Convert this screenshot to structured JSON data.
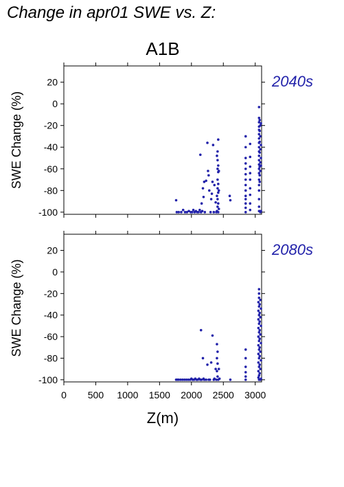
{
  "page_title": "Change in apr01 SWE vs. Z:",
  "scenario": "A1B",
  "chart_data": [
    {
      "type": "scatter",
      "period_label": "2040s",
      "xlabel": "",
      "ylabel": "SWE Change (%)",
      "xlim": [
        0,
        3100
      ],
      "ylim": [
        -102,
        35
      ],
      "xticks": [
        0,
        500,
        1000,
        1500,
        2000,
        2500,
        3000
      ],
      "yticks": [
        -100,
        -80,
        -60,
        -40,
        -20,
        0,
        20
      ],
      "show_x_tick_labels": false,
      "color": "#2222aa",
      "points": [
        [
          1760,
          -89
        ],
        [
          1770,
          -100
        ],
        [
          1800,
          -100
        ],
        [
          1840,
          -100
        ],
        [
          1870,
          -98
        ],
        [
          1900,
          -100
        ],
        [
          1930,
          -100
        ],
        [
          1960,
          -99
        ],
        [
          1990,
          -100
        ],
        [
          2010,
          -100
        ],
        [
          2030,
          -98
        ],
        [
          2050,
          -100
        ],
        [
          2070,
          -99
        ],
        [
          2090,
          -100
        ],
        [
          2110,
          -100
        ],
        [
          2130,
          -98
        ],
        [
          2150,
          -100
        ],
        [
          2170,
          -99
        ],
        [
          2140,
          -47
        ],
        [
          2160,
          -92
        ],
        [
          2180,
          -78
        ],
        [
          2190,
          -86
        ],
        [
          2200,
          -72
        ],
        [
          2210,
          -100
        ],
        [
          2230,
          -71
        ],
        [
          2250,
          -36
        ],
        [
          2260,
          -62
        ],
        [
          2270,
          -66
        ],
        [
          2280,
          -80
        ],
        [
          2300,
          -100
        ],
        [
          2310,
          -88
        ],
        [
          2320,
          -83
        ],
        [
          2330,
          -72
        ],
        [
          2340,
          -38
        ],
        [
          2350,
          -100
        ],
        [
          2360,
          -75
        ],
        [
          2380,
          -91
        ],
        [
          2390,
          -100
        ],
        [
          2400,
          -48
        ],
        [
          2400,
          -85
        ],
        [
          2400,
          -99
        ],
        [
          2410,
          -44
        ],
        [
          2410,
          -52
        ],
        [
          2410,
          -60
        ],
        [
          2410,
          -70
        ],
        [
          2410,
          -78
        ],
        [
          2410,
          -88
        ],
        [
          2410,
          -95
        ],
        [
          2420,
          -33
        ],
        [
          2420,
          -57
        ],
        [
          2420,
          -63
        ],
        [
          2420,
          -74
        ],
        [
          2420,
          -82
        ],
        [
          2420,
          -92
        ],
        [
          2420,
          -100
        ],
        [
          2430,
          -62
        ],
        [
          2430,
          -80
        ],
        [
          2430,
          -97
        ],
        [
          2600,
          -85
        ],
        [
          2610,
          -89
        ],
        [
          2850,
          -30
        ],
        [
          2850,
          -40
        ],
        [
          2850,
          -50
        ],
        [
          2850,
          -55
        ],
        [
          2850,
          -60
        ],
        [
          2850,
          -65
        ],
        [
          2850,
          -70
        ],
        [
          2850,
          -75
        ],
        [
          2850,
          -80
        ],
        [
          2850,
          -85
        ],
        [
          2850,
          -88
        ],
        [
          2850,
          -92
        ],
        [
          2850,
          -96
        ],
        [
          2850,
          -100
        ],
        [
          2920,
          -37
        ],
        [
          2920,
          -49
        ],
        [
          2920,
          -58
        ],
        [
          2920,
          -64
        ],
        [
          2920,
          -70
        ],
        [
          2920,
          -78
        ],
        [
          2920,
          -84
        ],
        [
          2920,
          -92
        ],
        [
          2920,
          -98
        ],
        [
          3060,
          -3
        ],
        [
          3060,
          -13
        ],
        [
          3060,
          -17
        ],
        [
          3060,
          -21
        ],
        [
          3060,
          -24
        ],
        [
          3060,
          -28
        ],
        [
          3060,
          -32
        ],
        [
          3060,
          -36
        ],
        [
          3060,
          -40
        ],
        [
          3060,
          -44
        ],
        [
          3060,
          -48
        ],
        [
          3060,
          -52
        ],
        [
          3060,
          -56
        ],
        [
          3060,
          -60
        ],
        [
          3060,
          -64
        ],
        [
          3060,
          -70
        ],
        [
          3060,
          -75
        ],
        [
          3060,
          -80
        ],
        [
          3060,
          -88
        ],
        [
          3060,
          -95
        ],
        [
          3060,
          -99
        ],
        [
          3070,
          -15
        ],
        [
          3070,
          -25
        ],
        [
          3070,
          -35
        ],
        [
          3070,
          -45
        ],
        [
          3070,
          -58
        ],
        [
          3070,
          -66
        ],
        [
          3070,
          -72
        ],
        [
          3070,
          -99
        ],
        [
          3080,
          -20
        ],
        [
          3080,
          -30
        ],
        [
          3080,
          -42
        ],
        [
          3080,
          -54
        ],
        [
          3080,
          -62
        ],
        [
          3080,
          -100
        ],
        [
          3090,
          -18
        ],
        [
          3090,
          -38
        ],
        [
          3090,
          -50
        ],
        [
          3090,
          -57
        ],
        [
          3090,
          -99
        ]
      ]
    },
    {
      "type": "scatter",
      "period_label": "2080s",
      "xlabel": "Z(m)",
      "ylabel": "SWE Change (%)",
      "xlim": [
        0,
        3100
      ],
      "ylim": [
        -102,
        35
      ],
      "xticks": [
        0,
        500,
        1000,
        1500,
        2000,
        2500,
        3000
      ],
      "yticks": [
        -100,
        -80,
        -60,
        -40,
        -20,
        0,
        20
      ],
      "show_x_tick_labels": true,
      "color": "#2222aa",
      "points": [
        [
          1760,
          -100
        ],
        [
          1780,
          -100
        ],
        [
          1800,
          -100
        ],
        [
          1830,
          -100
        ],
        [
          1860,
          -100
        ],
        [
          1890,
          -100
        ],
        [
          1920,
          -100
        ],
        [
          1950,
          -100
        ],
        [
          1980,
          -100
        ],
        [
          2000,
          -99
        ],
        [
          2020,
          -100
        ],
        [
          2040,
          -100
        ],
        [
          2060,
          -99
        ],
        [
          2080,
          -100
        ],
        [
          2100,
          -100
        ],
        [
          2120,
          -99
        ],
        [
          2140,
          -100
        ],
        [
          2150,
          -54
        ],
        [
          2160,
          -100
        ],
        [
          2180,
          -80
        ],
        [
          2190,
          -99
        ],
        [
          2200,
          -100
        ],
        [
          2230,
          -100
        ],
        [
          2250,
          -86
        ],
        [
          2270,
          -100
        ],
        [
          2290,
          -100
        ],
        [
          2310,
          -84
        ],
        [
          2330,
          -59
        ],
        [
          2350,
          -100
        ],
        [
          2360,
          -99
        ],
        [
          2380,
          -90
        ],
        [
          2390,
          -100
        ],
        [
          2400,
          -67
        ],
        [
          2400,
          -80
        ],
        [
          2400,
          -92
        ],
        [
          2410,
          -74
        ],
        [
          2410,
          -85
        ],
        [
          2410,
          -97
        ],
        [
          2420,
          -100
        ],
        [
          2430,
          -90
        ],
        [
          2440,
          -99
        ],
        [
          2610,
          -100
        ],
        [
          2850,
          -72
        ],
        [
          2850,
          -80
        ],
        [
          2850,
          -88
        ],
        [
          2850,
          -93
        ],
        [
          2850,
          -97
        ],
        [
          2850,
          -100
        ],
        [
          3050,
          -28
        ],
        [
          3050,
          -36
        ],
        [
          3050,
          -44
        ],
        [
          3050,
          -52
        ],
        [
          3050,
          -60
        ],
        [
          3050,
          -68
        ],
        [
          3050,
          -76
        ],
        [
          3050,
          -84
        ],
        [
          3050,
          -92
        ],
        [
          3050,
          -98
        ],
        [
          3060,
          -16
        ],
        [
          3060,
          -20
        ],
        [
          3060,
          -24
        ],
        [
          3060,
          -32
        ],
        [
          3060,
          -40
        ],
        [
          3060,
          -48
        ],
        [
          3060,
          -56
        ],
        [
          3060,
          -64
        ],
        [
          3060,
          -72
        ],
        [
          3060,
          -80
        ],
        [
          3060,
          -88
        ],
        [
          3060,
          -96
        ],
        [
          3060,
          -100
        ],
        [
          3070,
          -30
        ],
        [
          3070,
          -38
        ],
        [
          3070,
          -46
        ],
        [
          3070,
          -54
        ],
        [
          3070,
          -62
        ],
        [
          3070,
          -70
        ],
        [
          3070,
          -78
        ],
        [
          3070,
          -86
        ],
        [
          3070,
          -94
        ],
        [
          3080,
          -26
        ],
        [
          3080,
          -42
        ],
        [
          3080,
          -58
        ],
        [
          3080,
          -74
        ],
        [
          3080,
          -90
        ],
        [
          3080,
          -100
        ],
        [
          3090,
          -34
        ],
        [
          3090,
          -50
        ],
        [
          3090,
          -66
        ],
        [
          3090,
          -82
        ],
        [
          3090,
          -99
        ]
      ]
    }
  ]
}
